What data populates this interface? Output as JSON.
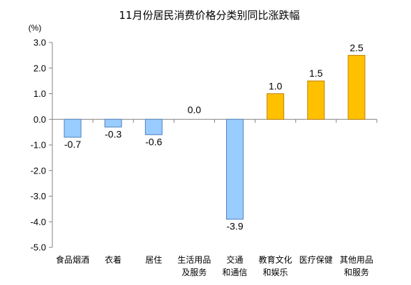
{
  "chart_data": {
    "type": "bar",
    "title": "11月份居民消费价格分类别同比涨跌幅",
    "unit_label": "(%)",
    "categories": [
      [
        "食品烟酒"
      ],
      [
        "衣着"
      ],
      [
        "居住"
      ],
      [
        "生活用品",
        "及服务"
      ],
      [
        "交通",
        "和通信"
      ],
      [
        "教育文化",
        "和娱乐"
      ],
      [
        "医疗保健"
      ],
      [
        "其他用品",
        "和服务"
      ]
    ],
    "values": [
      -0.7,
      -0.3,
      -0.6,
      0.0,
      -3.9,
      1.0,
      1.5,
      2.5
    ],
    "value_labels": [
      "-0.7",
      "-0.3",
      "-0.6",
      "0.0",
      "-3.9",
      "1.0",
      "1.5",
      "2.5"
    ],
    "ylim": [
      -5.0,
      3.0
    ],
    "yticks": [
      3.0,
      2.0,
      1.0,
      0.0,
      -1.0,
      -2.0,
      -3.0,
      -4.0,
      -5.0
    ],
    "ytick_labels": [
      "3.0",
      "2.0",
      "1.0",
      "0.0",
      "-1.0",
      "-2.0",
      "-3.0",
      "-4.0",
      "-5.0"
    ],
    "colors": {
      "negative_fill": "#99CCFF",
      "negative_stroke": "#4F81BD",
      "positive_fill": "#FFC000",
      "positive_stroke": "#C08000",
      "axis": "#808080"
    },
    "grid": false,
    "legend": "none"
  }
}
